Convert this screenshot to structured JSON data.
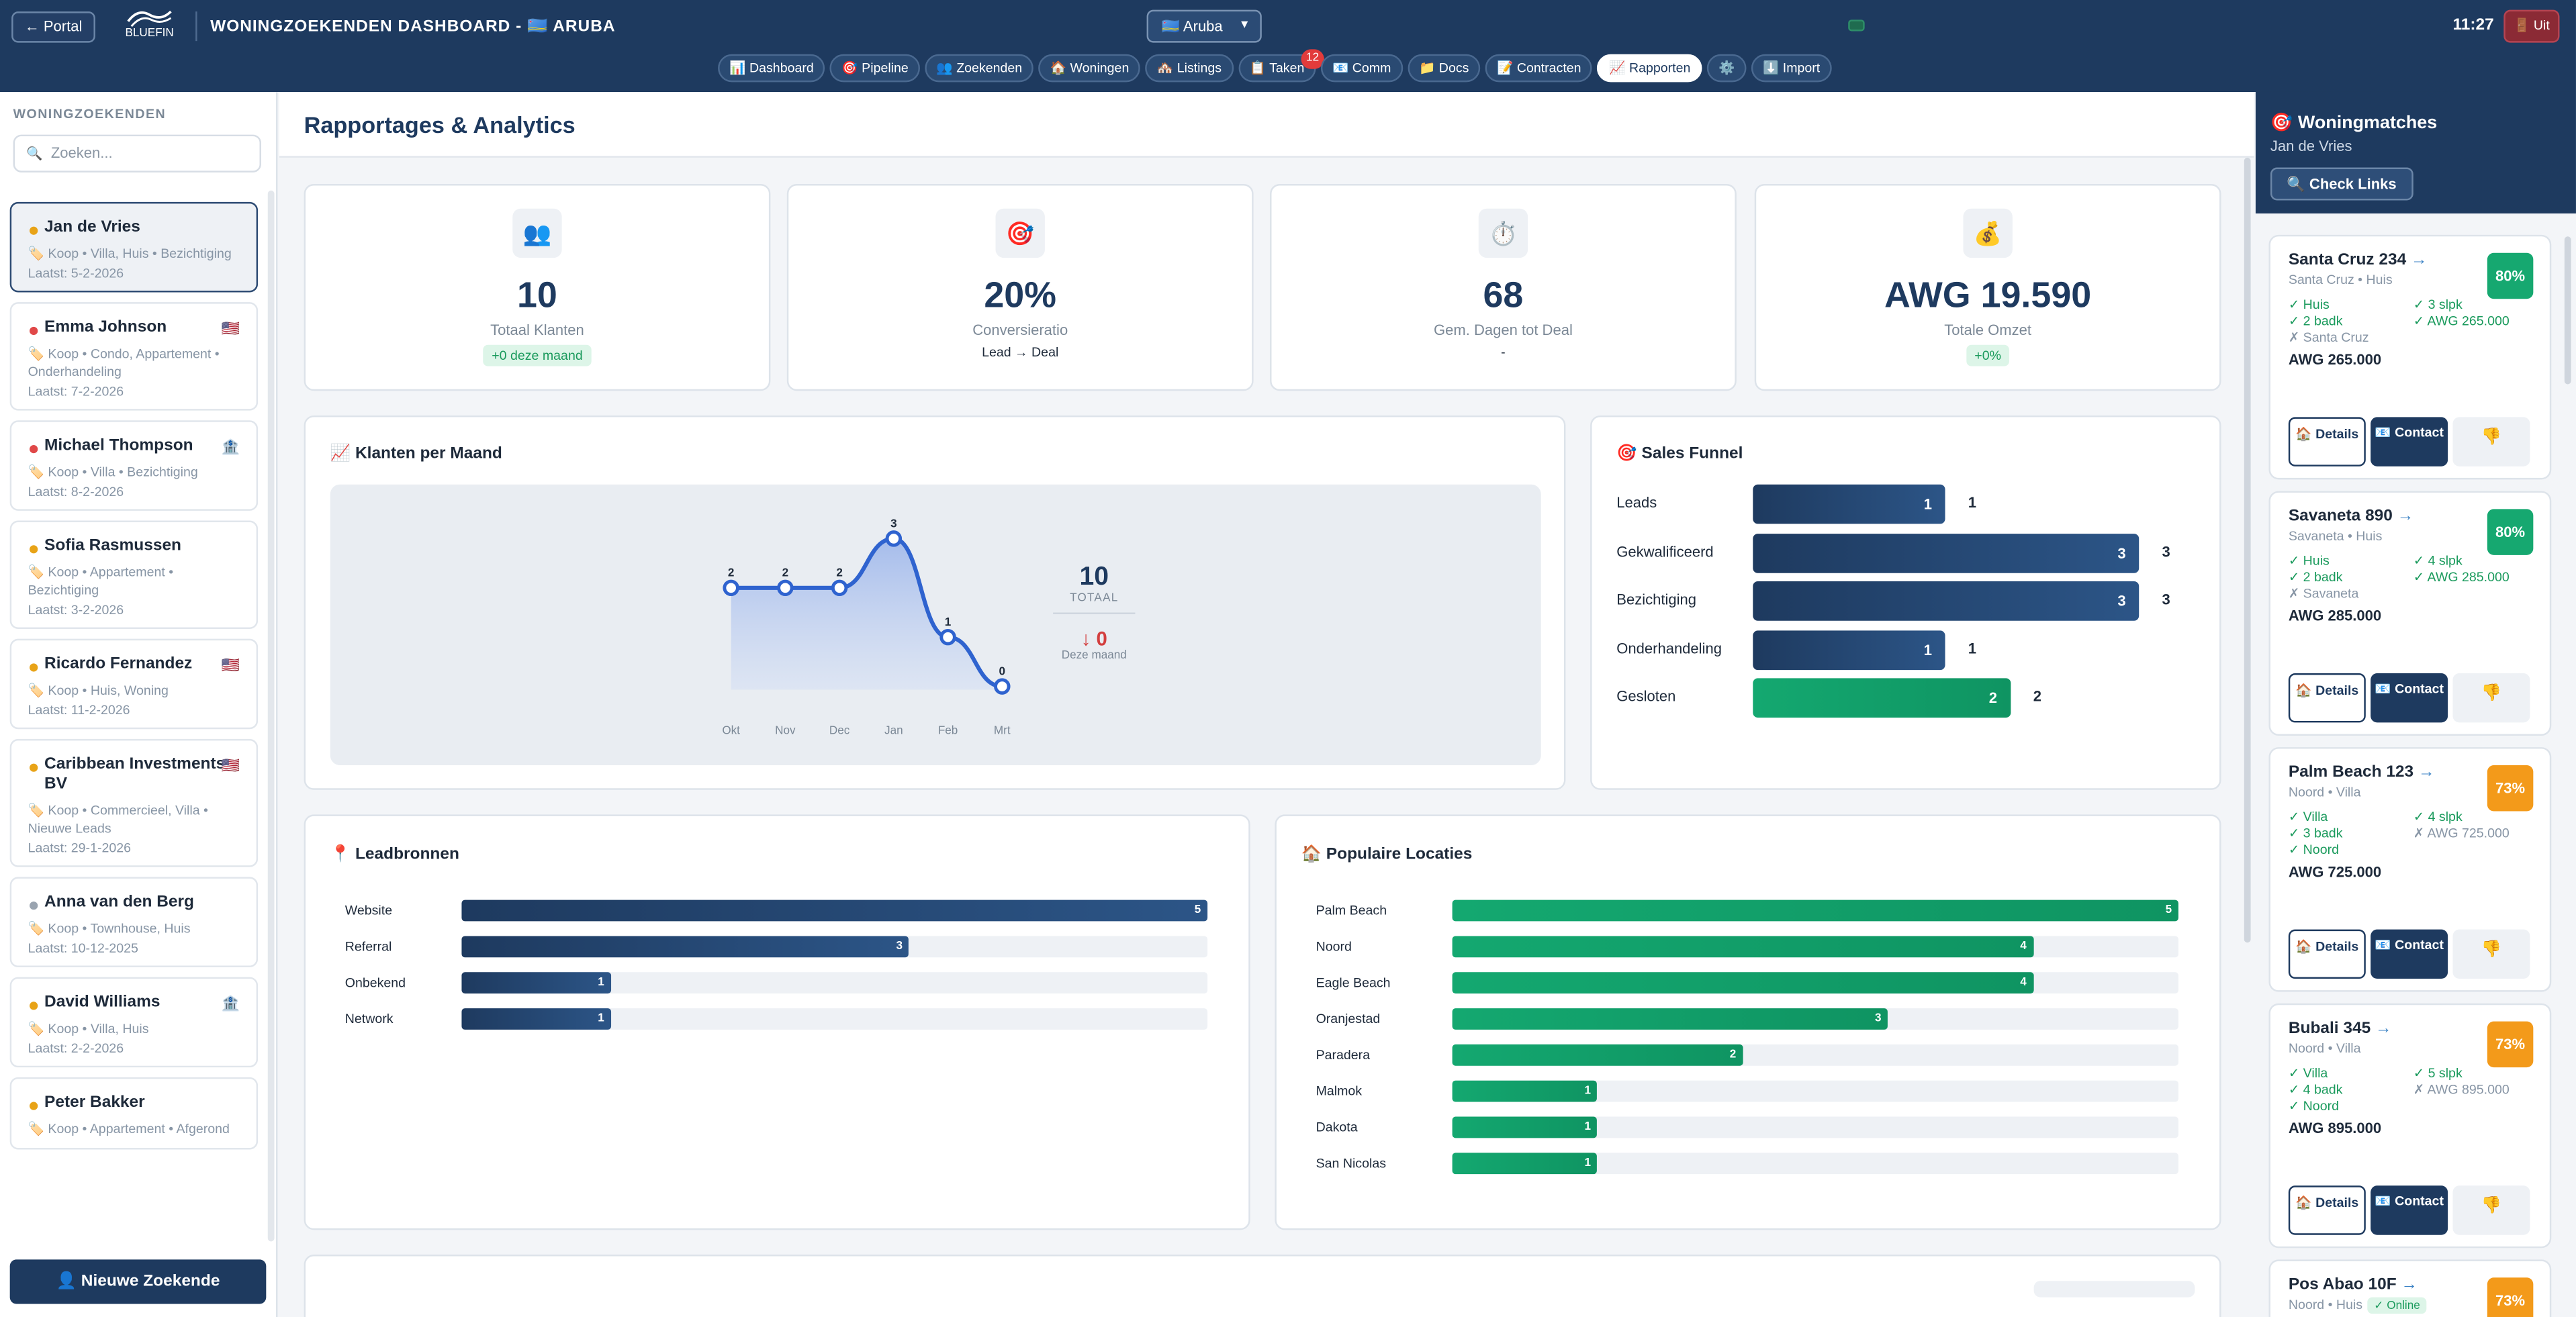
{
  "header": {
    "portal_label": "← Portal",
    "logo_text": "BLUEFIN",
    "title": "WONINGZOEKENDEN DASHBOARD - 🇦🇼 ARUBA",
    "region": "🇦🇼 Aruba",
    "time": "11:27",
    "logout_label": "🚪 Uit"
  },
  "nav": {
    "tabs": [
      {
        "label": "📊 Dashboard"
      },
      {
        "label": "🎯 Pipeline"
      },
      {
        "label": "👥 Zoekenden"
      },
      {
        "label": "🏠 Woningen"
      },
      {
        "label": "🏘️ Listings"
      },
      {
        "label": "📋 Taken",
        "badge": "12"
      },
      {
        "label": "📧 Comm"
      },
      {
        "label": "📁 Docs"
      },
      {
        "label": "📝 Contracten"
      },
      {
        "label": "📈 Rapporten"
      },
      {
        "label": "⚙️"
      },
      {
        "label": "⬇️ Import"
      }
    ]
  },
  "sidebar": {
    "title": "WONINGZOEKENDEN",
    "search_placeholder": "Zoeken...",
    "search_icon": "🔍",
    "new_button": "👤 Nieuwe Zoekende",
    "clients": [
      {
        "name": "Jan de Vries",
        "info": "🏷️ Koop • Villa, Huis • Bezichtiging",
        "last": "Laatst: 5-2-2026",
        "dot": "#e8a317",
        "tag": ""
      },
      {
        "name": "Emma Johnson",
        "info": "🏷️ Koop • Condo, Appartement • Onderhandeling",
        "last": "Laatst: 7-2-2026",
        "dot": "#e04848",
        "tag": "🇺🇸"
      },
      {
        "name": "Michael Thompson",
        "info": "🏷️ Koop • Villa • Bezichtiging",
        "last": "Laatst: 8-2-2026",
        "dot": "#e04848",
        "tag": "🏦"
      },
      {
        "name": "Sofia Rasmussen",
        "info": "🏷️ Koop • Appartement • Bezichtiging",
        "last": "Laatst: 3-2-2026",
        "dot": "#e8a317",
        "tag": ""
      },
      {
        "name": "Ricardo Fernandez",
        "info": "🏷️ Koop • Huis, Woning",
        "last": "Laatst: 11-2-2026",
        "dot": "#e8a317",
        "tag": "🇺🇸"
      },
      {
        "name": "Caribbean Investments BV",
        "info": "🏷️ Koop • Commercieel, Villa • Nieuwe Leads",
        "last": "Laatst: 29-1-2026",
        "dot": "#e8a317",
        "tag": "🇺🇸"
      },
      {
        "name": "Anna van den Berg",
        "info": "🏷️ Koop • Townhouse, Huis",
        "last": "Laatst: 10-12-2025",
        "dot": "#9aa4b0",
        "tag": ""
      },
      {
        "name": "David Williams",
        "info": "🏷️ Koop • Villa, Huis",
        "last": "Laatst: 2-2-2026",
        "dot": "#e8a317",
        "tag": "🏦"
      },
      {
        "name": "Peter Bakker",
        "info": "🏷️ Koop • Appartement • Afgerond",
        "last": "",
        "dot": "#e8a317",
        "tag": ""
      }
    ]
  },
  "main": {
    "title": "Rapportages & Analytics",
    "kpis": [
      {
        "icon": "👥",
        "value": "10",
        "label": "Totaal Klanten",
        "sub": "+0 deze maand",
        "pill": true
      },
      {
        "icon": "🎯",
        "value": "20%",
        "label": "Conversieratio",
        "sub": "Lead → Deal",
        "pill": false
      },
      {
        "icon": "⏱️",
        "value": "68",
        "label": "Gem. Dagen tot Deal",
        "sub": "-",
        "pill": false
      },
      {
        "icon": "💰",
        "value": "AWG 19.590",
        "label": "Totale Omzet",
        "sub": "+0%",
        "pill": true
      }
    ],
    "monthly": {
      "title": "📈 Klanten per Maand",
      "total": "10",
      "total_label": "TOTAAL",
      "change": "↓ 0",
      "change_label": "Deze maand"
    },
    "funnel": {
      "title": "🎯 Sales Funnel",
      "rows": [
        {
          "label": "Leads",
          "value": 1
        },
        {
          "label": "Gekwalificeerd",
          "value": 3
        },
        {
          "label": "Bezichtiging",
          "value": 3
        },
        {
          "label": "Onderhandeling",
          "value": 1
        },
        {
          "label": "Gesloten",
          "value": 2
        }
      ]
    },
    "leadsources": {
      "title": "📍 Leadbronnen",
      "rows": [
        {
          "label": "Website",
          "value": 5
        },
        {
          "label": "Referral",
          "value": 3
        },
        {
          "label": "Onbekend",
          "value": 1
        },
        {
          "label": "Network",
          "value": 1
        }
      ]
    },
    "locations": {
      "title": "🏠 Populaire Locaties",
      "rows": [
        {
          "label": "Palm Beach",
          "value": 5
        },
        {
          "label": "Noord",
          "value": 4
        },
        {
          "label": "Eagle Beach",
          "value": 4
        },
        {
          "label": "Oranjestad",
          "value": 3
        },
        {
          "label": "Paradera",
          "value": 2
        },
        {
          "label": "Malmok",
          "value": 1
        },
        {
          "label": "Dakota",
          "value": 1
        },
        {
          "label": "San Nicolas",
          "value": 1
        }
      ]
    }
  },
  "chart_data": {
    "type": "line",
    "categories": [
      "Okt",
      "Nov",
      "Dec",
      "Jan",
      "Feb",
      "Mrt"
    ],
    "values": [
      2,
      2,
      2,
      3,
      1,
      0
    ],
    "title": "📈 Klanten per Maand",
    "xlabel": "",
    "ylabel": "",
    "ylim": [
      0,
      3
    ]
  },
  "rpanel": {
    "title": "🎯 Woningmatches",
    "client": "Jan de Vries",
    "check_label": "🔍 Check Links",
    "matches": [
      {
        "title": "Santa Cruz 234",
        "sub": "Santa Cruz • Huis",
        "pct": "80%",
        "color": "#16a870",
        "features": [
          [
            "✓ Huis",
            true
          ],
          [
            "✓ 3 slpk",
            true
          ],
          [
            "✓ 2 badk",
            true
          ],
          [
            "✓ AWG 265.000",
            true
          ],
          [
            "✗ Santa Cruz",
            false
          ]
        ],
        "price": "AWG 265.000"
      },
      {
        "title": "Savaneta 890",
        "sub": "Savaneta • Huis",
        "pct": "80%",
        "color": "#16a870",
        "features": [
          [
            "✓ Huis",
            true
          ],
          [
            "✓ 4 slpk",
            true
          ],
          [
            "✓ 2 badk",
            true
          ],
          [
            "✓ AWG 285.000",
            true
          ],
          [
            "✗ Savaneta",
            false
          ]
        ],
        "price": "AWG 285.000"
      },
      {
        "title": "Palm Beach 123",
        "sub": "Noord • Villa",
        "pct": "73%",
        "color": "#f39a1a",
        "features": [
          [
            "✓ Villa",
            true
          ],
          [
            "✓ 4 slpk",
            true
          ],
          [
            "✓ 3 badk",
            true
          ],
          [
            "✗ AWG 725.000",
            false
          ],
          [
            "✓ Noord",
            true
          ]
        ],
        "price": "AWG 725.000"
      },
      {
        "title": "Bubali 345",
        "sub": "Noord • Villa",
        "pct": "73%",
        "color": "#f39a1a",
        "features": [
          [
            "✓ Villa",
            true
          ],
          [
            "✓ 5 slpk",
            true
          ],
          [
            "✓ 4 badk",
            true
          ],
          [
            "✗ AWG 895.000",
            false
          ],
          [
            "✓ Noord",
            true
          ]
        ],
        "price": "AWG 895.000"
      },
      {
        "title": "Pos Abao 10F",
        "sub": "Noord • Huis",
        "pct": "73%",
        "color": "#f39a1a",
        "online": "✓ Online",
        "features": [],
        "price": ""
      }
    ],
    "details_label": "🏠 Details",
    "contact_label": "📧 Contact",
    "dislike_label": "👎"
  }
}
